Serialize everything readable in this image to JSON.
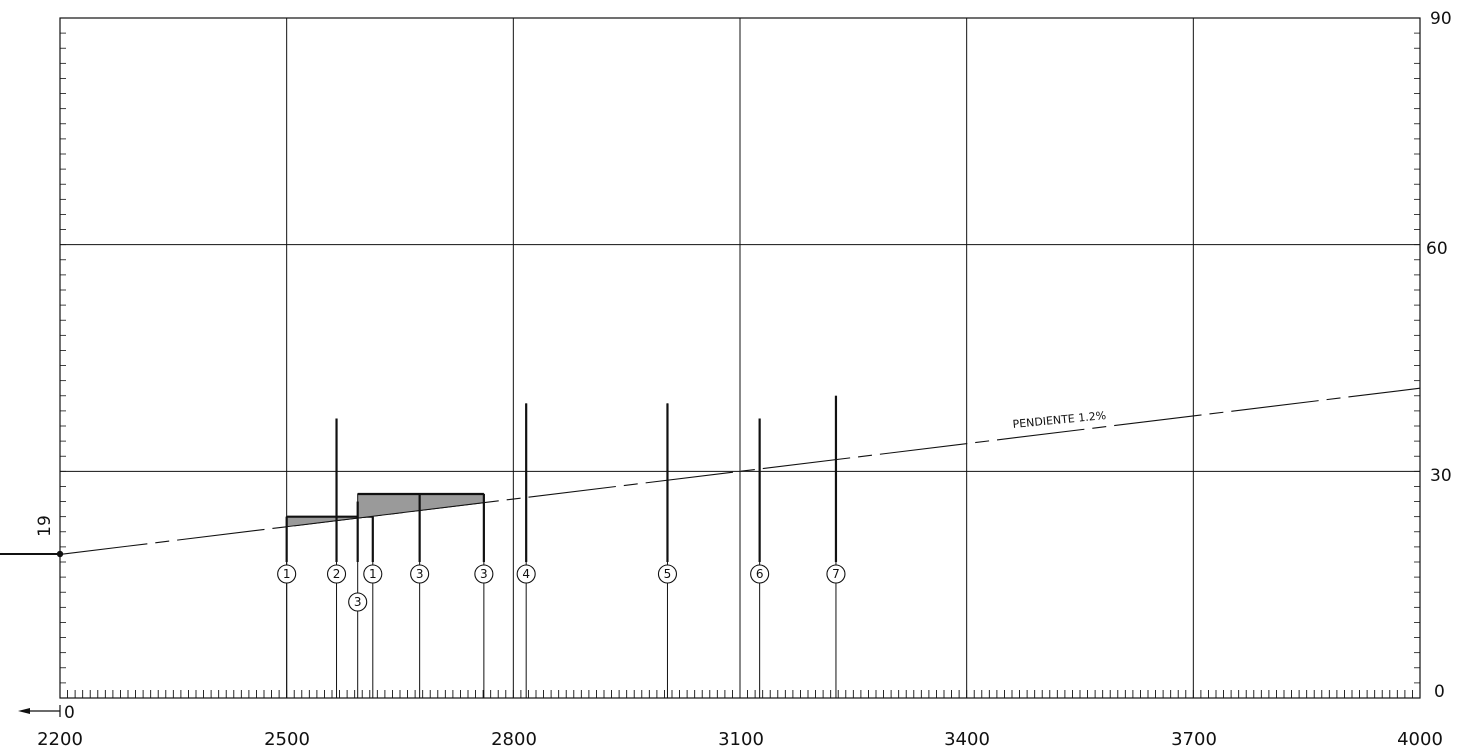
{
  "x_ticks": [
    "2200",
    "2500",
    "2800",
    "3100",
    "3400",
    "3700",
    "4000"
  ],
  "y_ticks": [
    "90",
    "60",
    "30",
    "0"
  ],
  "origin_label": "0",
  "left_level_label": "19",
  "slope_label": "PENDIENTE 1.2%",
  "grid": true,
  "x_range": [
    2200,
    4000
  ],
  "y_range": [
    0,
    90
  ],
  "slope_line": {
    "x_start": 2200,
    "y_start": 19,
    "x_end": 4000,
    "y_end": 41
  },
  "posts": [
    {
      "x": 2500,
      "top": 24,
      "label": "1",
      "label_row": 1
    },
    {
      "x": 2566,
      "top": 37,
      "label": "2",
      "label_row": 1
    },
    {
      "x": 2594,
      "top": 26,
      "label": "3",
      "label_row": 2
    },
    {
      "x": 2614,
      "top": 24,
      "label": "1",
      "label_row": 1
    },
    {
      "x": 2676,
      "top": 27,
      "label": "3",
      "label_row": 1
    },
    {
      "x": 2761,
      "top": 27,
      "label": "3",
      "label_row": 1
    },
    {
      "x": 2817,
      "top": 39,
      "label": "4",
      "label_row": 1
    },
    {
      "x": 3004,
      "top": 39,
      "label": "5",
      "label_row": 1
    },
    {
      "x": 3126,
      "top": 37,
      "label": "6",
      "label_row": 1
    },
    {
      "x": 3227,
      "top": 40,
      "label": "7",
      "label_row": 1
    }
  ],
  "platforms": [
    {
      "x_start": 2500,
      "x_end": 2614,
      "y": 24
    },
    {
      "x_start": 2594,
      "x_end": 2761,
      "y": 27
    }
  ]
}
